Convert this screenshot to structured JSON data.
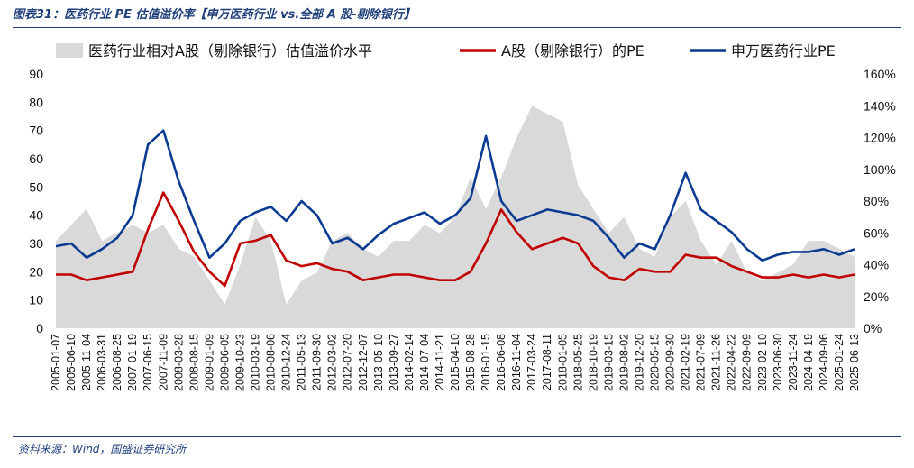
{
  "figure": {
    "title": "图表31：医药行业 PE 估值溢价率【申万医药行业 vs.全部 A 股-剔除银行】",
    "source": "资料来源：Wind，国盛证券研究所"
  },
  "chart_data": {
    "type": "line",
    "x_labels": [
      "2005-01-07",
      "2005-06-10",
      "2005-11-04",
      "2006-03-31",
      "2006-08-25",
      "2007-01-19",
      "2007-06-15",
      "2007-11-09",
      "2008-03-28",
      "2008-08-15",
      "2009-01-09",
      "2009-06-05",
      "2009-10-23",
      "2010-03-19",
      "2010-08-06",
      "2010-12-24",
      "2011-05-13",
      "2011-09-30",
      "2012-03-02",
      "2012-07-20",
      "2012-12-07",
      "2013-05-10",
      "2013-09-27",
      "2014-02-14",
      "2014-07-04",
      "2014-11-21",
      "2015-04-10",
      "2015-08-28",
      "2016-01-15",
      "2016-06-08",
      "2016-11-04",
      "2017-03-24",
      "2017-08-11",
      "2018-01-05",
      "2018-05-25",
      "2018-10-19",
      "2019-03-15",
      "2019-08-02",
      "2019-12-20",
      "2020-05-15",
      "2020-09-30",
      "2021-02-19",
      "2021-07-09",
      "2021-11-26",
      "2022-04-22",
      "2022-09-09",
      "2023-02-10",
      "2023-06-30",
      "2023-11-24",
      "2024-04-19",
      "2024-09-06",
      "2025-01-24",
      "2025-06-13"
    ],
    "left_axis": {
      "min": 0,
      "max": 90,
      "step": 10,
      "ticks": [
        "0",
        "10",
        "20",
        "30",
        "40",
        "50",
        "60",
        "70",
        "80",
        "90"
      ]
    },
    "right_axis": {
      "min": 0,
      "max": 160,
      "step": 20,
      "ticks": [
        "0%",
        "20%",
        "40%",
        "60%",
        "80%",
        "100%",
        "120%",
        "140%",
        "160%"
      ]
    },
    "series": [
      {
        "name": "医药行业相对A股（剔除银行）估值溢价水平",
        "kind": "area",
        "axis": "right",
        "color": "#d9d9d9",
        "values": [
          55,
          65,
          75,
          55,
          60,
          65,
          60,
          65,
          50,
          45,
          30,
          15,
          40,
          70,
          55,
          15,
          30,
          35,
          55,
          60,
          50,
          45,
          55,
          55,
          65,
          60,
          70,
          95,
          75,
          95,
          120,
          140,
          135,
          130,
          90,
          75,
          60,
          70,
          50,
          45,
          70,
          80,
          55,
          40,
          55,
          35,
          30,
          35,
          40,
          55,
          55,
          50,
          45
        ]
      },
      {
        "name": "A股（剔除银行）的PE",
        "kind": "line",
        "axis": "left",
        "color": "#c00000",
        "values": [
          19,
          19,
          17,
          18,
          19,
          20,
          35,
          48,
          38,
          27,
          20,
          15,
          30,
          31,
          33,
          24,
          22,
          23,
          21,
          20,
          17,
          18,
          19,
          19,
          18,
          17,
          17,
          20,
          30,
          42,
          34,
          28,
          30,
          32,
          30,
          22,
          18,
          17,
          21,
          20,
          20,
          26,
          25,
          25,
          22,
          20,
          18,
          18,
          19,
          18,
          19,
          18,
          19
        ]
      },
      {
        "name": "申万医药行业PE",
        "kind": "line",
        "axis": "left",
        "color": "#0b3b91",
        "values": [
          29,
          30,
          25,
          28,
          32,
          40,
          65,
          70,
          52,
          38,
          25,
          30,
          38,
          41,
          43,
          38,
          45,
          40,
          30,
          32,
          28,
          33,
          37,
          39,
          41,
          37,
          40,
          46,
          68,
          45,
          38,
          40,
          42,
          41,
          40,
          38,
          32,
          25,
          30,
          28,
          40,
          55,
          42,
          38,
          34,
          28,
          24,
          26,
          27,
          27,
          28,
          26,
          28
        ]
      }
    ]
  }
}
